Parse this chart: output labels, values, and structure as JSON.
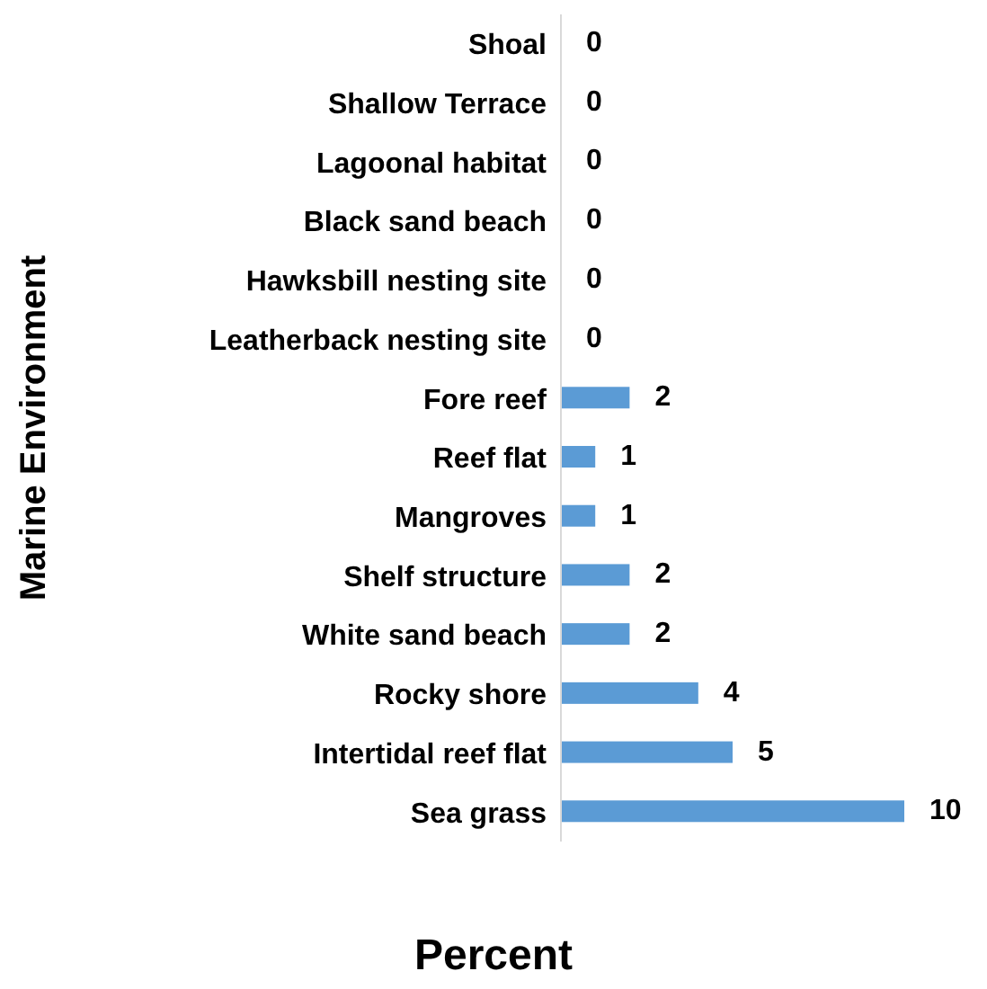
{
  "chart_data": {
    "type": "bar",
    "orientation": "horizontal",
    "xlabel": "Percent",
    "ylabel": "Marine Environment",
    "categories": [
      "Shoal",
      "Shallow Terrace",
      "Lagoonal habitat",
      "Black sand beach",
      "Hawksbill nesting site",
      "Leatherback nesting site",
      "Fore reef",
      "Reef flat",
      "Mangroves",
      "Shelf structure",
      "White sand beach",
      "Rocky shore",
      "Intertidal reef flat",
      "Sea grass"
    ],
    "values": [
      0,
      0,
      0,
      0,
      0,
      0,
      2,
      1,
      1,
      2,
      2,
      4,
      5,
      10
    ],
    "color": "#5b9bd5",
    "data_labels": true,
    "tick_labels": "y"
  }
}
